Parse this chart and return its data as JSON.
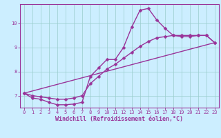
{
  "xlabel": "Windchill (Refroidissement éolien,°C)",
  "bg_color": "#cceeff",
  "line_color": "#993399",
  "grid_color": "#99cccc",
  "axis_color": "#993399",
  "xlim": [
    -0.5,
    23.5
  ],
  "ylim": [
    6.5,
    10.8
  ],
  "xticks": [
    0,
    1,
    2,
    3,
    4,
    5,
    6,
    7,
    8,
    9,
    10,
    11,
    12,
    13,
    14,
    15,
    16,
    17,
    18,
    19,
    20,
    21,
    22,
    23
  ],
  "yticks": [
    7,
    8,
    9,
    10
  ],
  "series1_x": [
    0,
    1,
    2,
    3,
    4,
    5,
    6,
    7,
    8,
    9,
    10,
    11,
    12,
    13,
    14,
    15,
    16,
    17,
    18,
    19,
    20,
    21,
    22,
    23
  ],
  "series1_y": [
    7.1,
    6.9,
    6.85,
    6.72,
    6.62,
    6.62,
    6.65,
    6.72,
    7.8,
    8.15,
    8.5,
    8.5,
    9.0,
    9.85,
    10.55,
    10.62,
    10.15,
    9.8,
    9.5,
    9.45,
    9.45,
    9.5,
    9.5,
    9.2
  ],
  "series2_x": [
    0,
    1,
    2,
    3,
    4,
    5,
    6,
    7,
    8,
    9,
    10,
    11,
    12,
    13,
    14,
    15,
    16,
    17,
    18,
    19,
    20,
    21,
    22,
    23
  ],
  "series2_y": [
    7.1,
    7.0,
    6.95,
    6.9,
    6.85,
    6.85,
    6.9,
    7.0,
    7.5,
    7.8,
    8.1,
    8.3,
    8.55,
    8.8,
    9.05,
    9.25,
    9.4,
    9.45,
    9.5,
    9.5,
    9.5,
    9.5,
    9.5,
    9.2
  ],
  "series3_x": [
    0,
    23
  ],
  "series3_y": [
    7.1,
    9.2
  ],
  "marker_size": 2.5,
  "line_width": 1.0,
  "tick_fontsize": 5.0,
  "label_fontsize": 6.0
}
